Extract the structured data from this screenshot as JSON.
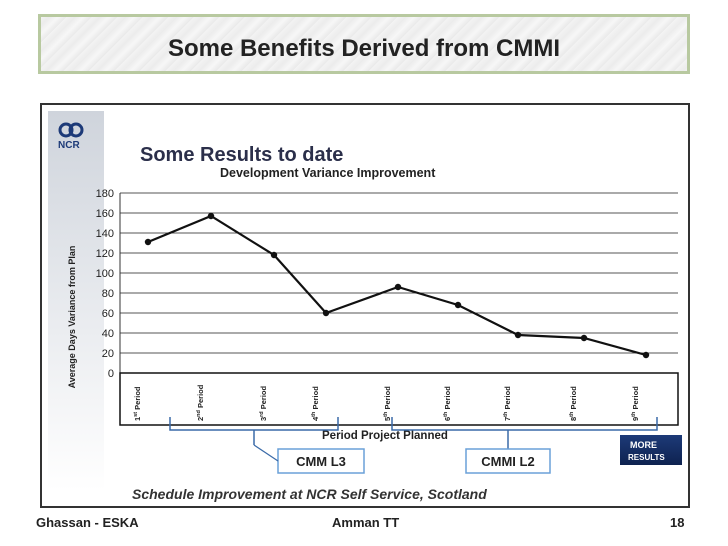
{
  "slide": {
    "title": "Some Benefits Derived from CMMI",
    "footer_left": "Ghassan - ESKA",
    "footer_center": "Amman TT",
    "page_number": "18"
  },
  "logo": {
    "text": "NCR"
  },
  "badge": {
    "line1": "MORE",
    "line2": "RESULTS"
  },
  "annotations": {
    "cmm_l3": "CMM L3",
    "cmmi_l2": "CMMI L2",
    "caption": "Schedule Improvement at NCR Self Service, Scotland"
  },
  "chart_data": {
    "type": "line",
    "title": "Some Results to date",
    "subtitle": "Development Variance Improvement",
    "xlabel": "Period Project Planned",
    "ylabel": "Average Days Variance from Plan",
    "ylim": [
      0,
      180
    ],
    "yticks": [
      0,
      20,
      40,
      60,
      80,
      100,
      120,
      140,
      160,
      180
    ],
    "grid": true,
    "categories": [
      {
        "ord": "1",
        "sup": "st",
        "rest": " Period"
      },
      {
        "ord": "2",
        "sup": "nd",
        "rest": " Period"
      },
      {
        "ord": "3",
        "sup": "rd",
        "rest": " Period"
      },
      {
        "ord": "4",
        "sup": "th",
        "rest": " Period"
      },
      {
        "ord": "5",
        "sup": "th",
        "rest": " Period"
      },
      {
        "ord": "6",
        "sup": "th",
        "rest": " Period"
      },
      {
        "ord": "7",
        "sup": "th",
        "rest": " Period"
      },
      {
        "ord": "8",
        "sup": "th",
        "rest": " Period"
      },
      {
        "ord": "9",
        "sup": "th",
        "rest": " Period"
      }
    ],
    "values": [
      131,
      157,
      118,
      60,
      86,
      68,
      38,
      35,
      18
    ],
    "colors": {
      "line": "#111111",
      "grid": "#555555",
      "title": "#222222"
    }
  }
}
